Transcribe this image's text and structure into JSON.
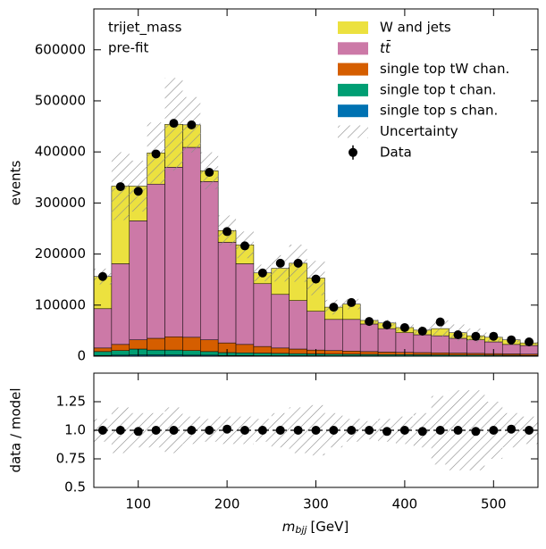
{
  "chart_data": [
    {
      "type": "stacked_histogram",
      "annotations": [
        "trijet_mass",
        "pre-fit"
      ],
      "y_label": "events",
      "bins": [
        50,
        70,
        90,
        110,
        130,
        150,
        170,
        190,
        210,
        230,
        250,
        270,
        290,
        310,
        330,
        350,
        370,
        390,
        410,
        430,
        450,
        470,
        490,
        510,
        530,
        550
      ],
      "series": [
        {
          "name": "W and jets",
          "color": "#ece13f",
          "values": [
            63000,
            152000,
            68000,
            61000,
            84000,
            44000,
            21000,
            23000,
            37000,
            21000,
            51000,
            73000,
            65000,
            24000,
            30000,
            7000,
            11000,
            10000,
            9000,
            14000,
            11000,
            8000,
            9000,
            9000,
            5000
          ]
        },
        {
          "name": "tt̄",
          "color": "#cc79a7",
          "values": [
            77000,
            158000,
            233000,
            302000,
            332000,
            372000,
            310000,
            197000,
            158000,
            123000,
            105000,
            95000,
            76000,
            61000,
            62000,
            54000,
            46000,
            38500,
            35000,
            33500,
            29000,
            26500,
            23000,
            18500,
            17000
          ]
        },
        {
          "name": "single top tW chan.",
          "color": "#d55e00",
          "values": [
            7000,
            12000,
            18000,
            23000,
            26000,
            26000,
            23000,
            19000,
            16500,
            13000,
            10500,
            9000,
            7500,
            7000,
            6200,
            5500,
            4800,
            4500,
            4200,
            3900,
            3600,
            3300,
            3000,
            2700,
            2400
          ]
        },
        {
          "name": "single top t chan.",
          "color": "#009e73",
          "values": [
            7500,
            9000,
            11500,
            9500,
            9500,
            9000,
            7000,
            5500,
            5000,
            5000,
            4500,
            4000,
            3500,
            3200,
            3000,
            2800,
            2600,
            2500,
            2300,
            2200,
            2000,
            1900,
            1700,
            1500,
            1400
          ]
        },
        {
          "name": "single top s chan.",
          "color": "#0072b2",
          "values": [
            1500,
            2000,
            2500,
            2500,
            2500,
            2000,
            2000,
            1500,
            1500,
            1000,
            1000,
            1000,
            1000,
            800,
            800,
            700,
            600,
            500,
            500,
            400,
            400,
            300,
            300,
            300,
            200
          ]
        }
      ],
      "uncertainty_label": "Uncertainty",
      "data": {
        "name": "Data",
        "color": "#000000",
        "values": [
          156000,
          332000,
          323000,
          396000,
          456000,
          453000,
          360000,
          244000,
          216000,
          163000,
          182000,
          182000,
          151000,
          96000,
          105000,
          68000,
          61000,
          56000,
          49000,
          67000,
          42000,
          39000,
          39000,
          32000,
          28000
        ]
      },
      "ylim": [
        0,
        680000
      ],
      "yticks": [
        0,
        100000,
        200000,
        300000,
        400000,
        500000,
        600000
      ],
      "legend": "upper right"
    },
    {
      "type": "ratio",
      "y_label": "data / model",
      "x_label": [
        "m",
        "bjj",
        "[GeV]"
      ],
      "values": [
        1.0,
        1.0,
        0.99,
        1.0,
        1.0,
        1.0,
        1.0,
        1.01,
        1.0,
        1.0,
        1.0,
        1.0,
        1.0,
        1.0,
        1.0,
        1.0,
        0.99,
        1.0,
        0.99,
        1.0,
        1.0,
        0.99,
        1.0,
        1.01,
        1.0
      ],
      "uncertainty": [
        0.1,
        0.2,
        0.15,
        0.15,
        0.2,
        0.12,
        0.1,
        0.12,
        0.12,
        0.1,
        0.15,
        0.2,
        0.22,
        0.15,
        0.1,
        0.08,
        0.1,
        0.12,
        0.15,
        0.3,
        0.35,
        0.35,
        0.25,
        0.15,
        0.12
      ],
      "xlim": [
        50,
        550
      ],
      "xticks": [
        100,
        200,
        300,
        400,
        500
      ],
      "ylim": [
        0.5,
        1.5
      ],
      "yticks": [
        0.5,
        0.75,
        {
          "value": 1,
          "label": "1.0"
        },
        1.25
      ]
    }
  ]
}
